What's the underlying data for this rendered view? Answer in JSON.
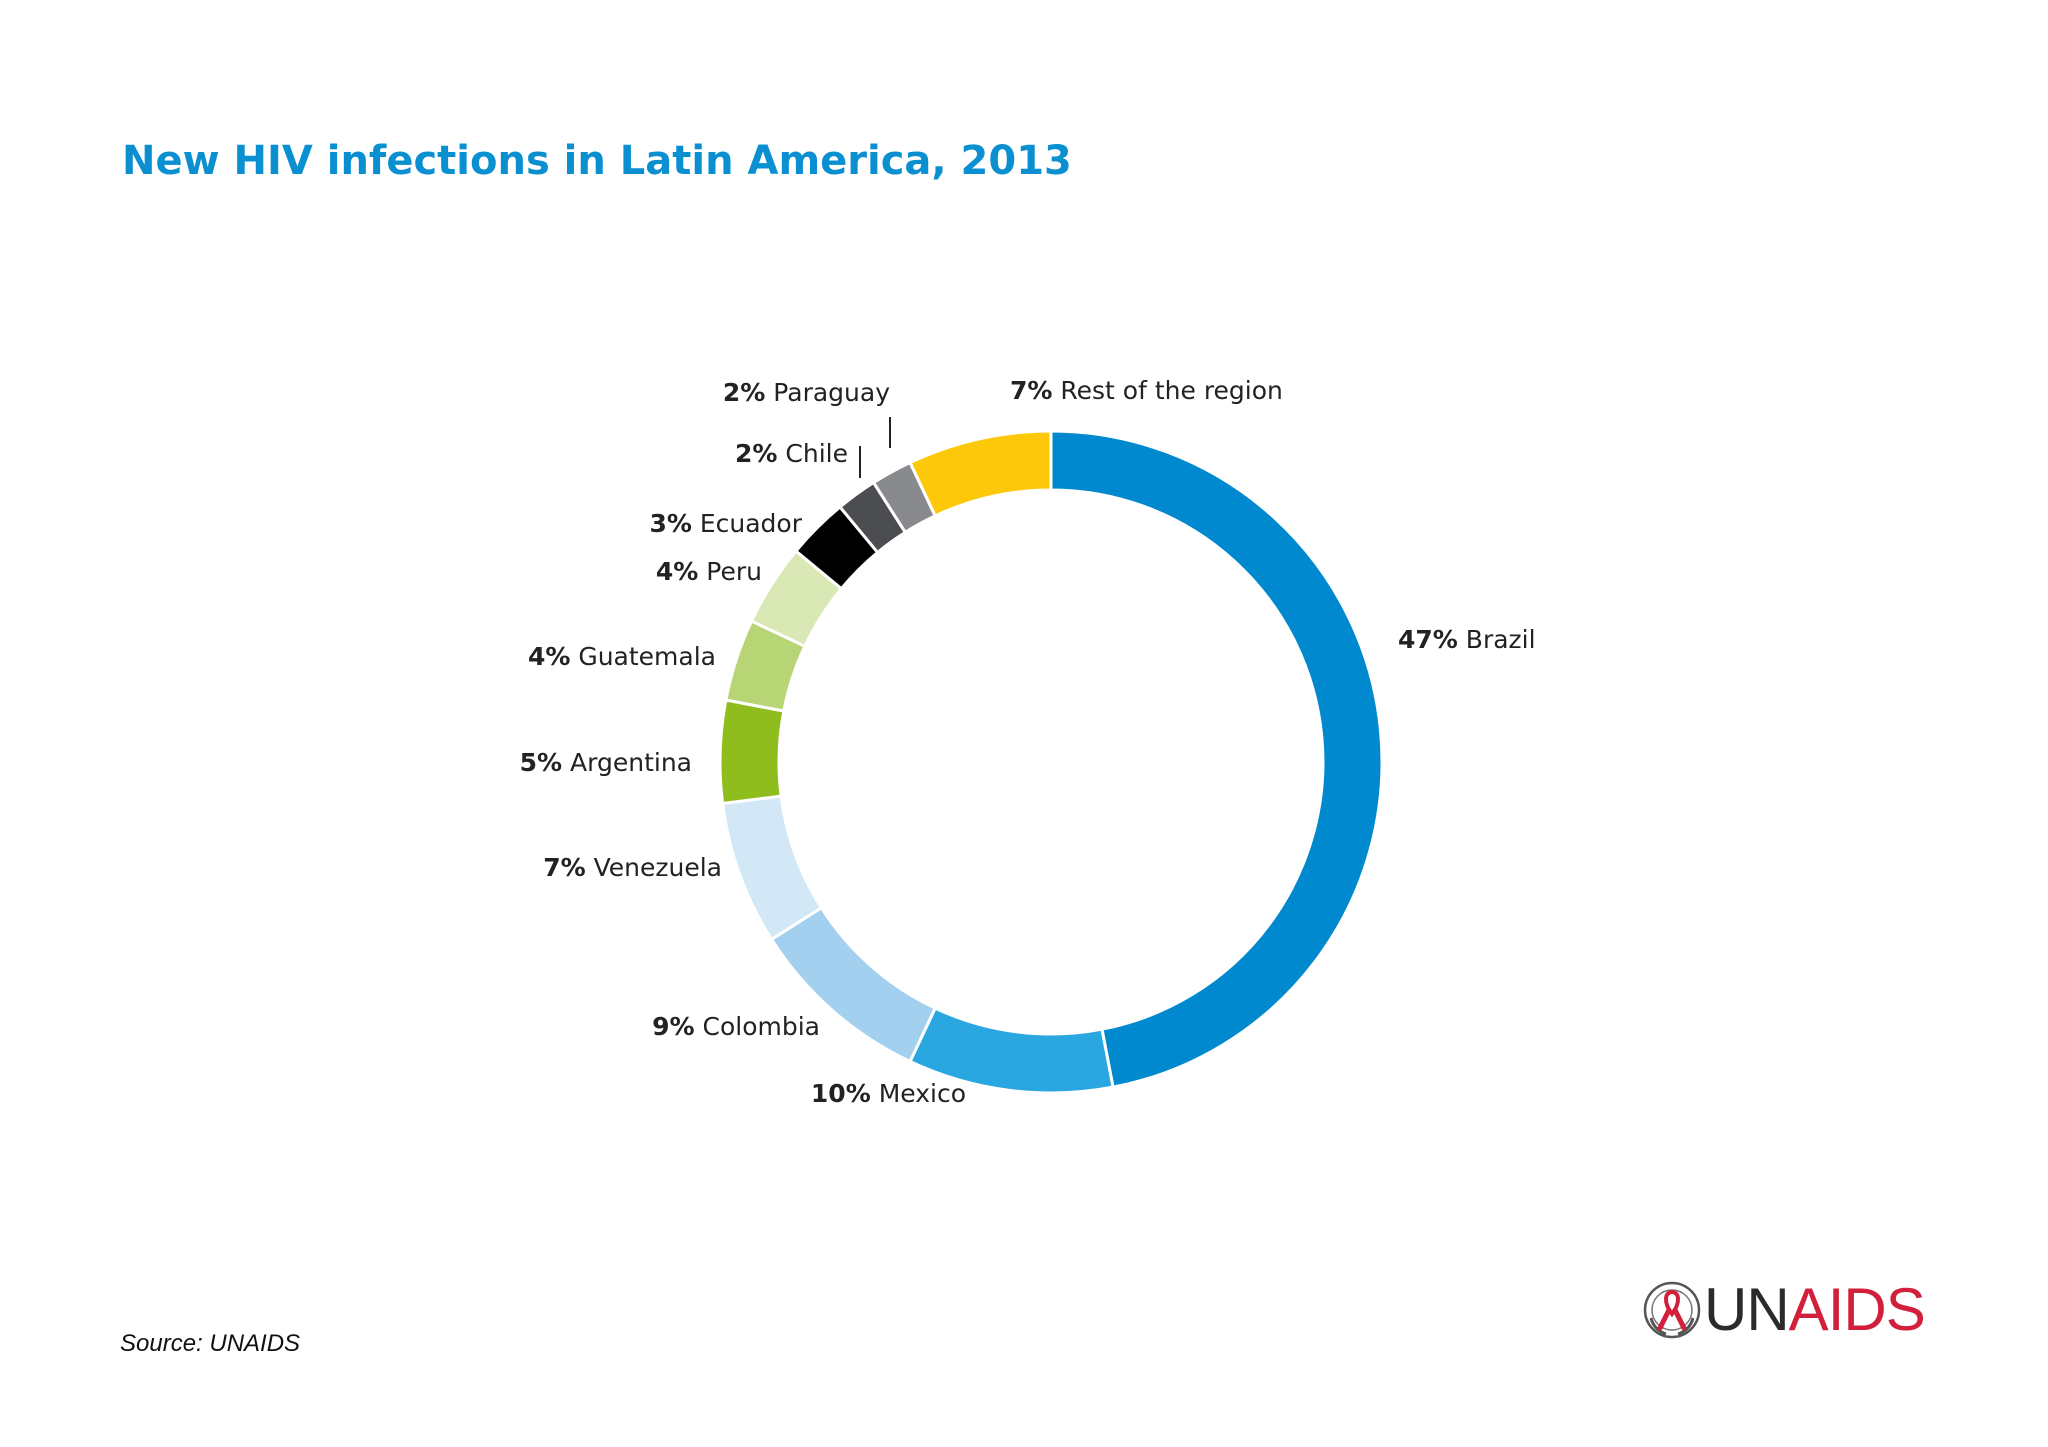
{
  "chart_data": {
    "type": "pie",
    "variant": "donut",
    "title": "New HIV infections in Latin America, 2013",
    "unit": "%",
    "slices": [
      {
        "label": "Brazil",
        "value": 47,
        "pct_label": "47%",
        "color": "#0089cf"
      },
      {
        "label": "Mexico",
        "value": 10,
        "pct_label": "10%",
        "color": "#2aa7e0"
      },
      {
        "label": "Colombia",
        "value": 9,
        "pct_label": "9%",
        "color": "#a3d0ef"
      },
      {
        "label": "Venezuela",
        "value": 7,
        "pct_label": "7%",
        "color": "#d2e8f7"
      },
      {
        "label": "Argentina",
        "value": 5,
        "pct_label": "5%",
        "color": "#8fbd1e"
      },
      {
        "label": "Guatemala",
        "value": 4,
        "pct_label": "4%",
        "color": "#b7d575"
      },
      {
        "label": "Peru",
        "value": 4,
        "pct_label": "4%",
        "color": "#d9e8b4"
      },
      {
        "label": "Ecuador",
        "value": 3,
        "pct_label": "3%",
        "color": "#000000"
      },
      {
        "label": "Chile",
        "value": 2,
        "pct_label": "2%",
        "color": "#4c4d50"
      },
      {
        "label": "Paraguay",
        "value": 2,
        "pct_label": "2%",
        "color": "#898a8d"
      },
      {
        "label": "Rest of the region",
        "value": 7,
        "pct_label": "7%",
        "color": "#fec80a"
      }
    ]
  },
  "source": "Source: UNAIDS",
  "logo": {
    "text_un": "UN",
    "text_aids": "AIDS"
  }
}
